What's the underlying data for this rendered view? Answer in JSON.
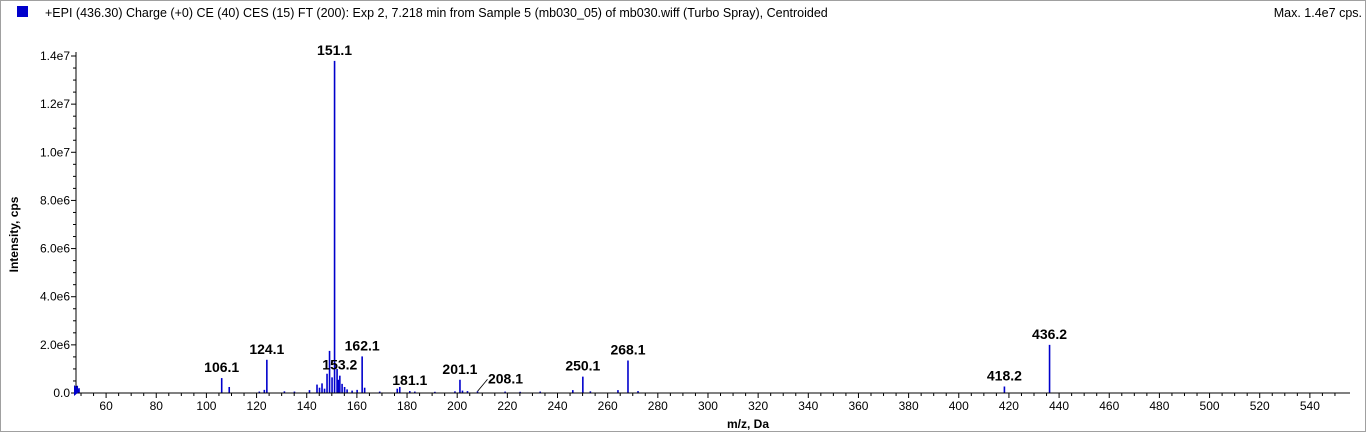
{
  "header": {
    "title": "+EPI (436.30) Charge (+0) CE (40) CES (15) FT (200): Exp 2, 7.218 min from Sample 5 (mb030_05) of mb030.wiff (Turbo Spray), Centroided",
    "max_label": "Max. 1.4e7 cps."
  },
  "colors": {
    "series": "#0000cc",
    "axis": "#000000",
    "frame": "#a0a0a0"
  },
  "chart_data": {
    "type": "bar",
    "xlabel": "m/z, Da",
    "ylabel": "Intensity, cps",
    "xlim": [
      48,
      556
    ],
    "ylim": [
      0,
      14000000
    ],
    "x_ticks": [
      60,
      80,
      100,
      120,
      140,
      160,
      180,
      200,
      220,
      240,
      260,
      280,
      300,
      320,
      340,
      360,
      380,
      400,
      420,
      440,
      460,
      480,
      500,
      520,
      540
    ],
    "y_ticks": [
      {
        "value": 0,
        "label": "0.0"
      },
      {
        "value": 2000000,
        "label": "2.0e6"
      },
      {
        "value": 4000000,
        "label": "4.0e6"
      },
      {
        "value": 6000000,
        "label": "6.0e6"
      },
      {
        "value": 8000000,
        "label": "8.0e6"
      },
      {
        "value": 10000000,
        "label": "1.0e7"
      },
      {
        "value": 12000000,
        "label": "1.2e7"
      },
      {
        "value": 14000000,
        "label": "1.4e7"
      }
    ],
    "series": [
      {
        "x": [
          48.5,
          49.2,
          106.1,
          109.1,
          121.1,
          123.1,
          124.1,
          131.1,
          135.1,
          141.1,
          144.1,
          145.1,
          146.1,
          147.1,
          148.1,
          149.1,
          150.1,
          151.1,
          152.1,
          152.6,
          153.2,
          154.1,
          155.1,
          156.1,
          158.1,
          160.1,
          162.1,
          163.1,
          169.1,
          176.1,
          177.1,
          181.1,
          183.1,
          191.1,
          199.1,
          201.1,
          202.1,
          204.1,
          208.1,
          219.1,
          225.1,
          233.1,
          246.1,
          250.1,
          253.1,
          264.1,
          268.1,
          272.1,
          418.2,
          436.2
        ],
        "values": [
          300000,
          200000,
          620000,
          250000,
          60000,
          130000,
          1380000,
          70000,
          60000,
          120000,
          350000,
          220000,
          400000,
          180000,
          800000,
          1750000,
          650000,
          13800000,
          1000000,
          550000,
          720000,
          380000,
          250000,
          150000,
          100000,
          130000,
          1520000,
          220000,
          60000,
          180000,
          250000,
          80000,
          60000,
          50000,
          70000,
          550000,
          100000,
          80000,
          70000,
          60000,
          50000,
          60000,
          120000,
          680000,
          70000,
          120000,
          1350000,
          80000,
          270000,
          2000000
        ]
      }
    ],
    "annotations": [
      {
        "x": 151.1,
        "label": "151.1"
      },
      {
        "x": 106.1,
        "label": "106.1"
      },
      {
        "x": 124.1,
        "label": "124.1"
      },
      {
        "x": 153.2,
        "label": "153.2"
      },
      {
        "x": 162.1,
        "label": "162.1"
      },
      {
        "x": 181.1,
        "label": "181.1"
      },
      {
        "x": 201.1,
        "label": "201.1"
      },
      {
        "x": 208.1,
        "label": "208.1"
      },
      {
        "x": 250.1,
        "label": "250.1"
      },
      {
        "x": 268.1,
        "label": "268.1"
      },
      {
        "x": 418.2,
        "label": "418.2"
      },
      {
        "x": 436.2,
        "label": "436.2"
      }
    ]
  }
}
